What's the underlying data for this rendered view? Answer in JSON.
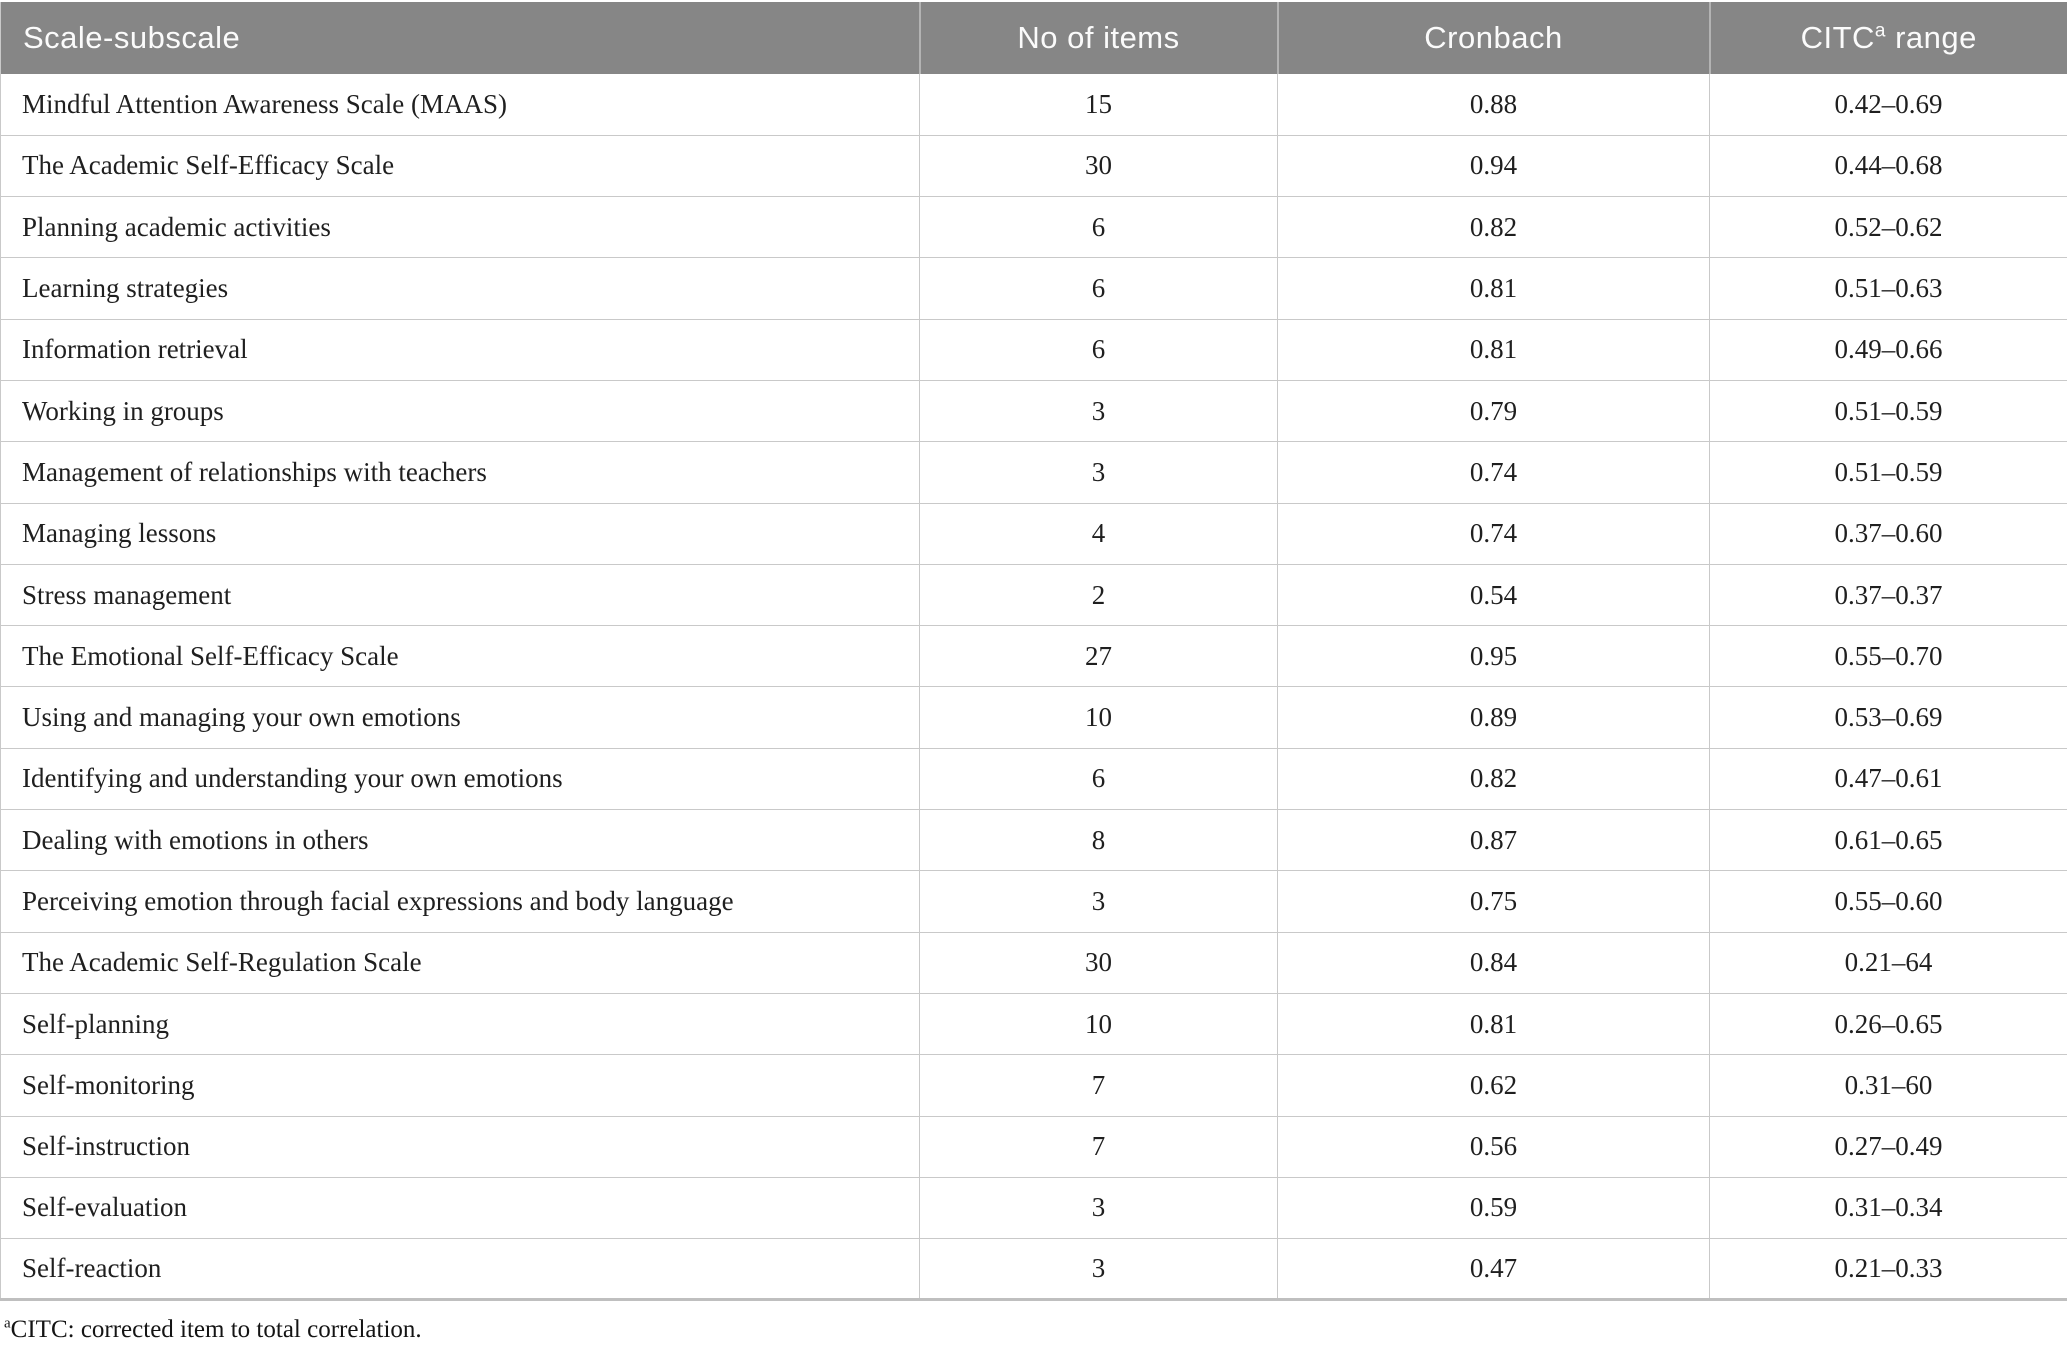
{
  "colors": {
    "header_bg": "#868686",
    "header_text": "#fbfbfb",
    "header_divider": "#b3b3b3",
    "grid_line": "#c9c9c9",
    "body_text": "#1f1f1f",
    "table_bottom": "#bfbfbf"
  },
  "table": {
    "headers": [
      {
        "pre": "Scale-subscale",
        "sup": "",
        "post": ""
      },
      {
        "pre": "No of items",
        "sup": "",
        "post": ""
      },
      {
        "pre": "Cronbach",
        "sup": "",
        "post": ""
      },
      {
        "pre": "CITC",
        "sup": "a",
        "post": " range"
      }
    ],
    "rows": [
      {
        "label": "Mindful Attention Awareness Scale (MAAS)",
        "no_of_items": "15",
        "cronbach": "0.88",
        "citc_range": "0.42–0.69"
      },
      {
        "label": "The Academic Self-Efficacy Scale",
        "no_of_items": "30",
        "cronbach": "0.94",
        "citc_range": "0.44–0.68"
      },
      {
        "label": "Planning academic activities",
        "no_of_items": "6",
        "cronbach": "0.82",
        "citc_range": "0.52–0.62"
      },
      {
        "label": "Learning strategies",
        "no_of_items": "6",
        "cronbach": "0.81",
        "citc_range": "0.51–0.63"
      },
      {
        "label": "Information retrieval",
        "no_of_items": "6",
        "cronbach": "0.81",
        "citc_range": "0.49–0.66"
      },
      {
        "label": "Working in groups",
        "no_of_items": "3",
        "cronbach": "0.79",
        "citc_range": "0.51–0.59"
      },
      {
        "label": "Management of relationships with teachers",
        "no_of_items": "3",
        "cronbach": "0.74",
        "citc_range": "0.51–0.59"
      },
      {
        "label": "Managing lessons",
        "no_of_items": "4",
        "cronbach": "0.74",
        "citc_range": "0.37–0.60"
      },
      {
        "label": "Stress management",
        "no_of_items": "2",
        "cronbach": "0.54",
        "citc_range": "0.37–0.37"
      },
      {
        "label": "The Emotional Self-Efficacy Scale",
        "no_of_items": "27",
        "cronbach": "0.95",
        "citc_range": "0.55–0.70"
      },
      {
        "label": "Using and managing your own emotions",
        "no_of_items": "10",
        "cronbach": "0.89",
        "citc_range": "0.53–0.69"
      },
      {
        "label": "Identifying and understanding your own emotions",
        "no_of_items": "6",
        "cronbach": "0.82",
        "citc_range": "0.47–0.61"
      },
      {
        "label": "Dealing with emotions in others",
        "no_of_items": "8",
        "cronbach": "0.87",
        "citc_range": "0.61–0.65"
      },
      {
        "label": "Perceiving emotion through facial expressions and body language",
        "no_of_items": "3",
        "cronbach": "0.75",
        "citc_range": "0.55–0.60"
      },
      {
        "label": "The Academic Self-Regulation Scale",
        "no_of_items": "30",
        "cronbach": "0.84",
        "citc_range": "0.21–64"
      },
      {
        "label": "Self-planning",
        "no_of_items": "10",
        "cronbach": "0.81",
        "citc_range": "0.26–0.65"
      },
      {
        "label": "Self-monitoring",
        "no_of_items": "7",
        "cronbach": "0.62",
        "citc_range": "0.31–60"
      },
      {
        "label": "Self-instruction",
        "no_of_items": "7",
        "cronbach": "0.56",
        "citc_range": "0.27–0.49"
      },
      {
        "label": "Self-evaluation",
        "no_of_items": "3",
        "cronbach": "0.59",
        "citc_range": "0.31–0.34"
      },
      {
        "label": "Self-reaction",
        "no_of_items": "3",
        "cronbach": "0.47",
        "citc_range": "0.21–0.33"
      }
    ]
  },
  "footnote": {
    "sup": "a",
    "text": "CITC: corrected item to total correlation."
  }
}
